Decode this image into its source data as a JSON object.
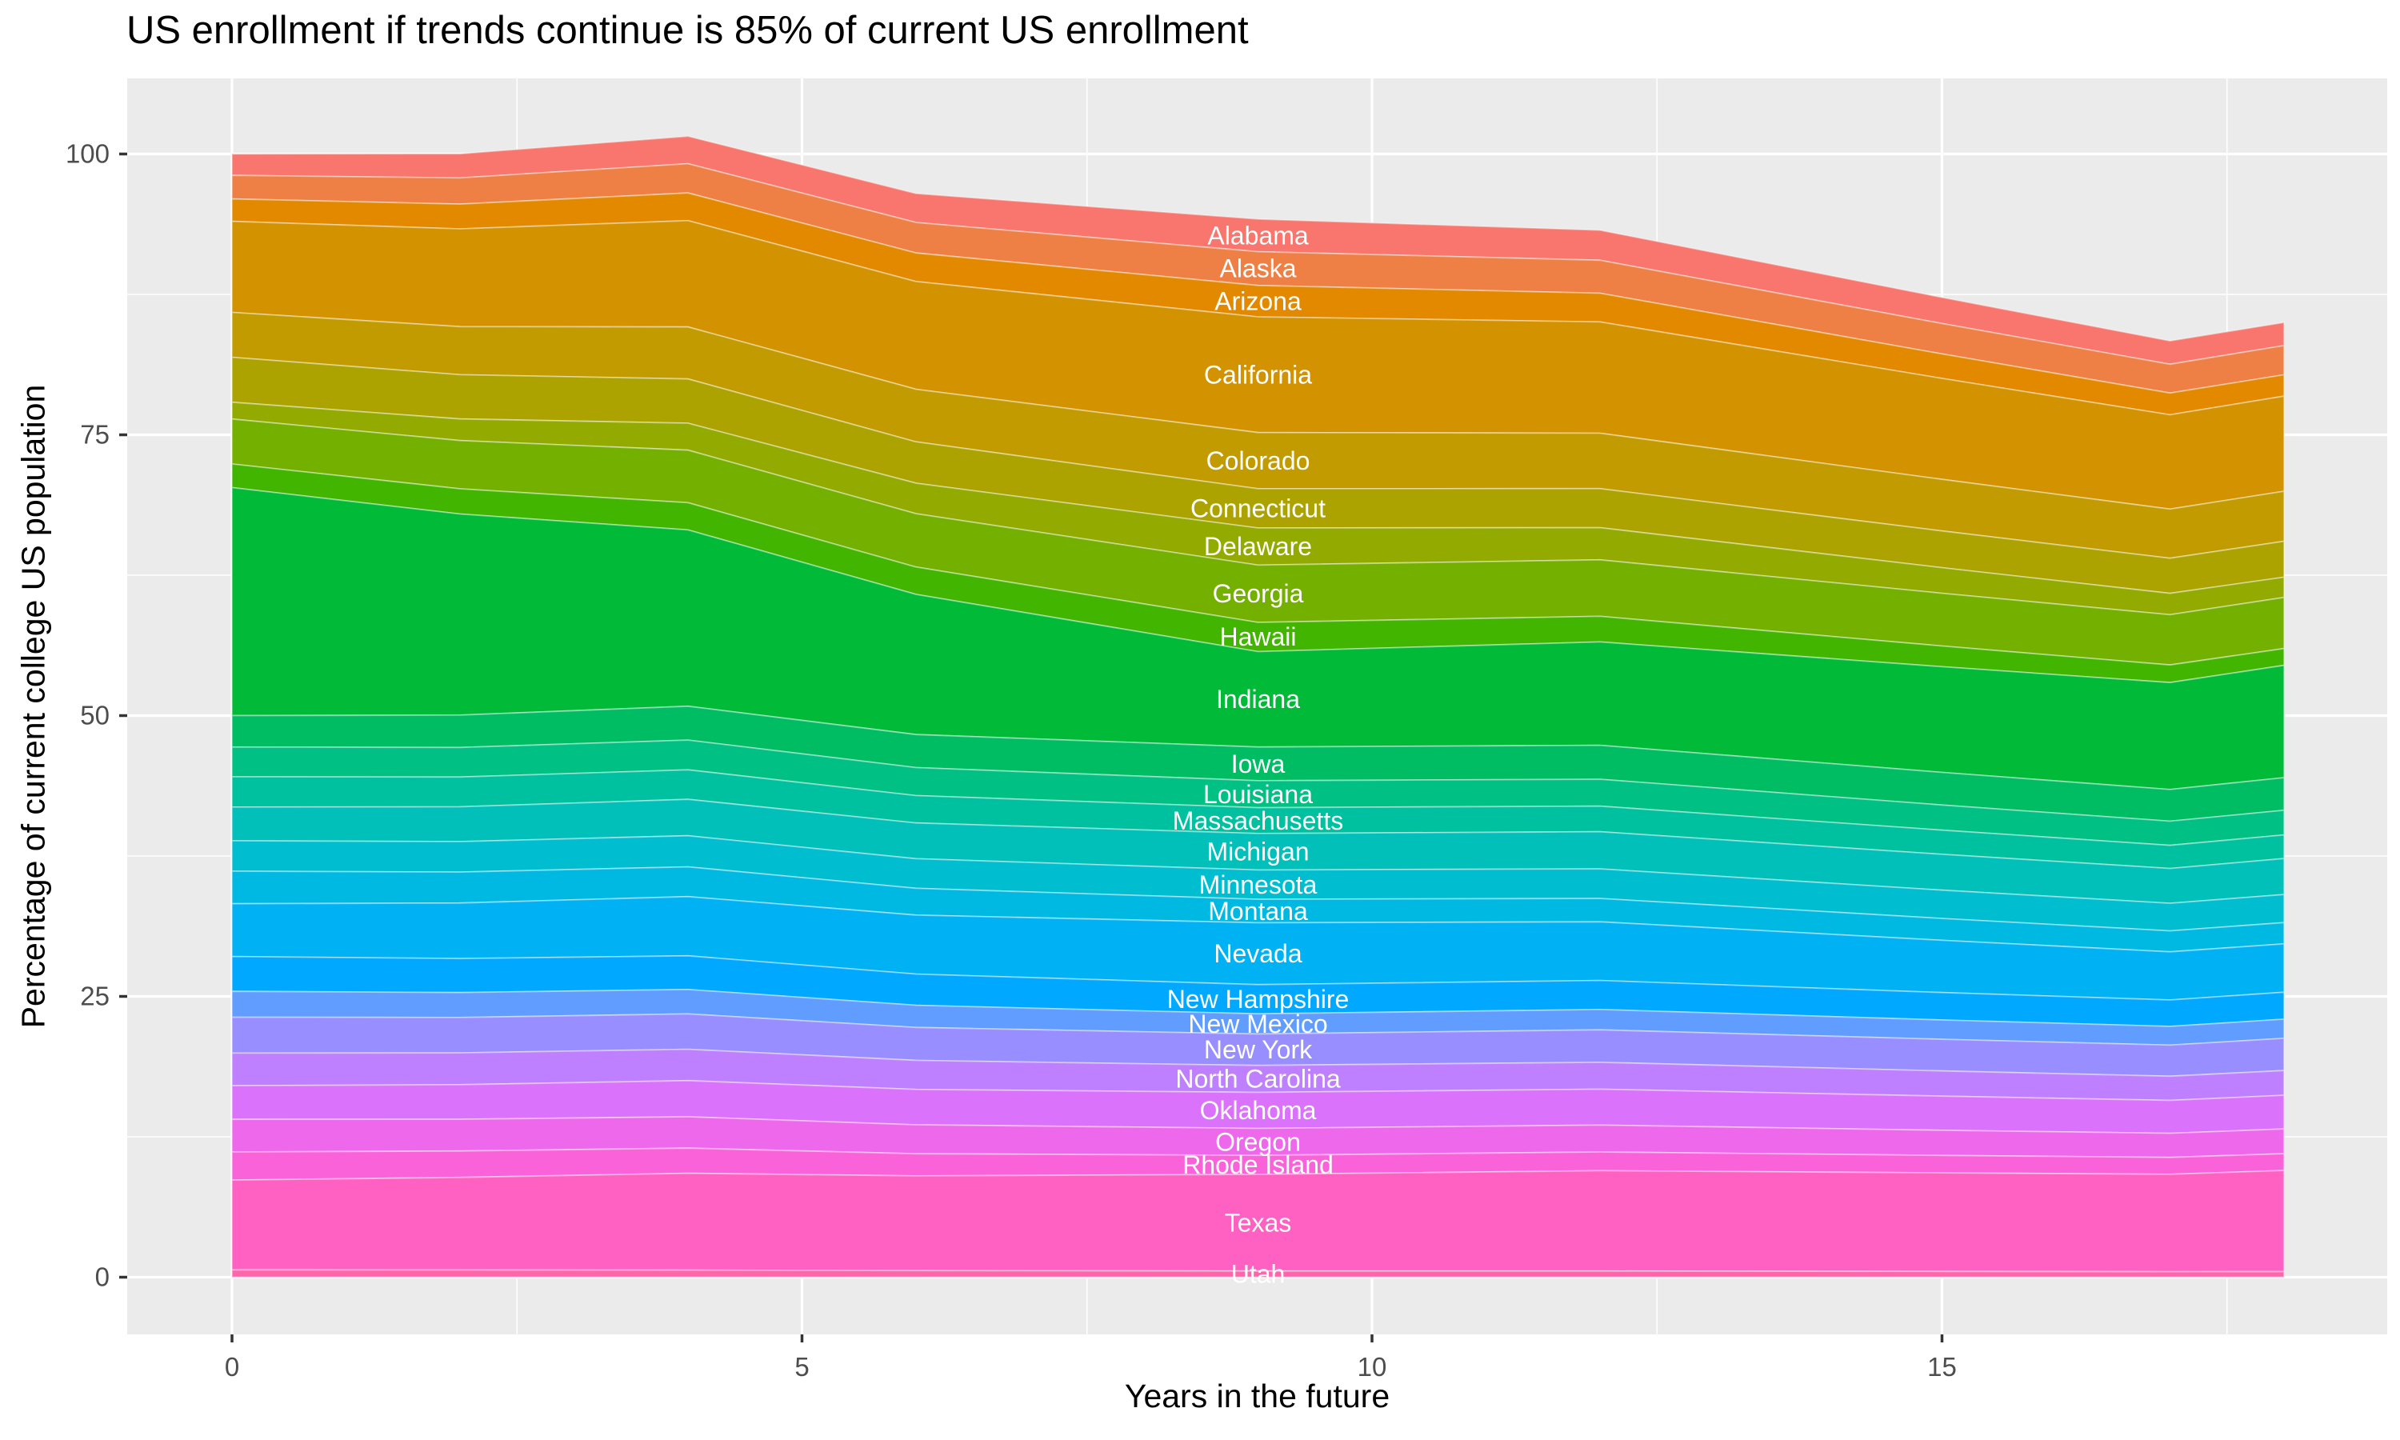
{
  "figure": {
    "title": "US enrollment if trends continue is 85% of current US enrollment",
    "x_axis_title": "Years in the future",
    "y_axis_title": "Percentage of current college US population"
  },
  "axes": {
    "x_ticks": [
      0,
      5,
      10,
      15
    ],
    "x_minor": [
      2.5,
      7.5,
      12.5,
      17.5
    ],
    "y_ticks": [
      0,
      25,
      50,
      75,
      100
    ],
    "y_minor": [
      12.5,
      37.5,
      62.5,
      87.5
    ],
    "xlim": [
      -0.92,
      18.9
    ],
    "ylim": [
      -5.1,
      106.7
    ]
  },
  "style": {
    "panel_bg": "#EBEBEB",
    "grid_color": "#FFFFFF",
    "tick_mark_color": "#333333",
    "tick_label_color": "#4D4D4D",
    "title_color": "#000000",
    "state_label_color": "#FFFFFF",
    "first_band_color": "#F8766D",
    "last_band_color": "#FF61C9"
  },
  "state_labels": [
    "Alabama",
    "Alaska",
    "Arizona",
    "California",
    "Colorado",
    "Connecticut",
    "Delaware",
    "Georgia",
    "Hawaii",
    "Indiana",
    "Iowa",
    "Louisiana",
    "Massachusetts",
    "Michigan",
    "Minnesota",
    "Montana",
    "Nevada",
    "New Hampshire",
    "New Mexico",
    "New York",
    "North Carolina",
    "Oklahoma",
    "Oregon",
    "Rhode Island",
    "Texas",
    "Utah"
  ],
  "chart_data": {
    "type": "area",
    "stacked": true,
    "title": "US enrollment if trends continue is 85% of current US enrollment",
    "xlabel": "Years in the future",
    "ylabel": "Percentage of current college US population",
    "grid": true,
    "legend": false,
    "label_x": 9,
    "x": [
      0,
      2,
      4,
      6,
      9,
      12,
      15,
      17,
      18
    ],
    "series": [
      {
        "name": "Alabama",
        "values": [
          1.9,
          2.15,
          2.44,
          2.58,
          2.9,
          2.68,
          2.32,
          2.08,
          2.06
        ]
      },
      {
        "name": "Alaska",
        "values": [
          2.1,
          2.33,
          2.61,
          2.71,
          3.0,
          2.93,
          2.71,
          2.56,
          2.6
        ]
      },
      {
        "name": "Arizona",
        "values": [
          2.0,
          2.21,
          2.46,
          2.54,
          2.8,
          2.56,
          2.18,
          1.94,
          1.9
        ]
      },
      {
        "name": "California",
        "values": [
          8.1,
          8.7,
          9.47,
          9.6,
          10.3,
          9.91,
          8.99,
          8.4,
          8.47
        ]
      },
      {
        "name": "Colorado",
        "values": [
          4.0,
          4.28,
          4.63,
          4.68,
          5.0,
          4.93,
          4.59,
          4.37,
          4.45
        ]
      },
      {
        "name": "Connecticut",
        "values": [
          4.0,
          3.94,
          3.94,
          3.68,
          3.5,
          3.48,
          3.27,
          3.13,
          3.2
        ]
      },
      {
        "name": "Delaware",
        "values": [
          1.5,
          1.92,
          2.4,
          2.71,
          3.3,
          2.86,
          2.28,
          1.9,
          1.8
        ]
      },
      {
        "name": "Georgia",
        "values": [
          4.0,
          4.3,
          4.68,
          4.75,
          5.1,
          5.03,
          4.69,
          4.47,
          4.55
        ]
      },
      {
        "name": "Hawaii",
        "values": [
          2.1,
          2.24,
          2.42,
          2.44,
          2.6,
          2.28,
          1.85,
          1.57,
          1.5
        ]
      },
      {
        "name": "Indiana",
        "values": [
          20.3,
          17.91,
          15.7,
          12.48,
          8.5,
          9.2,
          9.41,
          9.52,
          10.0
        ]
      },
      {
        "name": "Iowa",
        "values": [
          2.8,
          2.88,
          3.01,
          2.94,
          3.0,
          3.03,
          2.9,
          2.82,
          2.9
        ]
      },
      {
        "name": "Louisiana",
        "values": [
          2.65,
          2.63,
          2.65,
          2.49,
          2.4,
          2.39,
          2.24,
          2.15,
          2.2
        ]
      },
      {
        "name": "Massachusetts",
        "values": [
          2.7,
          2.65,
          2.63,
          2.44,
          2.3,
          2.28,
          2.15,
          2.06,
          2.1
        ]
      },
      {
        "name": "Michigan",
        "values": [
          3.0,
          3.1,
          3.24,
          3.18,
          3.25,
          3.31,
          3.19,
          3.1,
          3.2
        ]
      },
      {
        "name": "Minnesota",
        "values": [
          2.7,
          2.71,
          2.77,
          2.64,
          2.6,
          2.63,
          2.52,
          2.46,
          2.5
        ]
      },
      {
        "name": "Montana",
        "values": [
          2.9,
          2.76,
          2.65,
          2.38,
          2.1,
          2.08,
          1.95,
          1.86,
          1.9
        ]
      },
      {
        "name": "Nevada",
        "values": [
          4.7,
          4.94,
          5.27,
          5.25,
          5.5,
          5.22,
          4.65,
          4.29,
          4.3
        ]
      },
      {
        "name": "New Hampshire",
        "values": [
          3.1,
          3.03,
          3.0,
          2.78,
          2.6,
          2.59,
          2.44,
          2.35,
          2.4
        ]
      },
      {
        "name": "New Mexico",
        "values": [
          2.3,
          2.22,
          2.17,
          1.97,
          1.8,
          1.81,
          1.72,
          1.67,
          1.7
        ]
      },
      {
        "name": "New York",
        "values": [
          3.2,
          3.15,
          3.15,
          2.94,
          2.8,
          2.89,
          2.82,
          2.77,
          2.87
        ]
      },
      {
        "name": "North Carolina",
        "values": [
          2.9,
          2.83,
          2.79,
          2.58,
          2.4,
          2.39,
          2.24,
          2.15,
          2.2
        ]
      },
      {
        "name": "Oklahoma",
        "values": [
          3.0,
          3.08,
          3.22,
          3.15,
          3.2,
          3.2,
          3.04,
          2.93,
          3.0
        ]
      },
      {
        "name": "Oregon",
        "values": [
          2.9,
          2.83,
          2.79,
          2.58,
          2.4,
          2.39,
          2.24,
          2.15,
          2.2
        ]
      },
      {
        "name": "Rhode Island",
        "values": [
          2.5,
          2.35,
          2.24,
          1.97,
          1.7,
          1.67,
          1.55,
          1.5,
          1.5
        ]
      },
      {
        "name": "Texas",
        "values": [
          8.0,
          8.24,
          8.62,
          8.43,
          8.6,
          8.93,
          8.78,
          8.67,
          9.0
        ]
      },
      {
        "name": "Utah",
        "values": [
          0.65,
          0.64,
          0.63,
          0.59,
          0.55,
          0.55,
          0.51,
          0.49,
          0.5
        ]
      }
    ],
    "totals_top_contour": [
      100.0,
      100.0,
      101.6,
      96.5,
      94.2,
      93.2,
      87.2,
      83.3,
      85.0
    ],
    "palette": {
      "model": "hcl",
      "h_start": 15,
      "h_step": 13.333,
      "c": 100,
      "l": 65
    }
  }
}
